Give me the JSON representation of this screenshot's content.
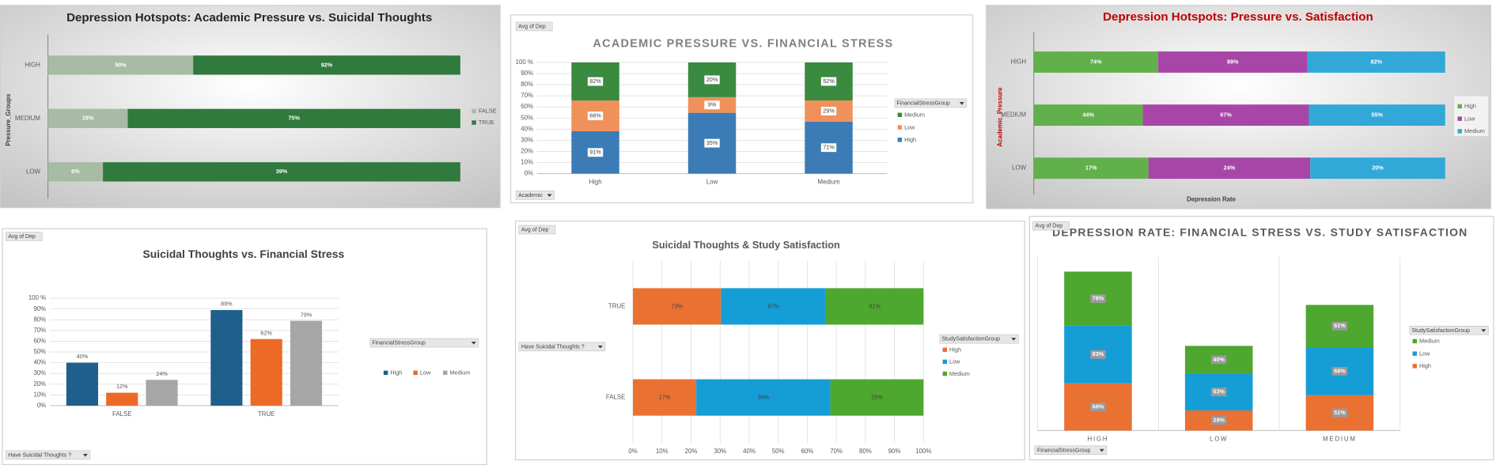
{
  "chart_data": [
    {
      "type": "bar",
      "title": "Depression Hotspots: Academic Pressure vs. Suicidal Thoughts",
      "horizontal": true,
      "stacking": "percent",
      "y_label": "Pressure_Groups",
      "categories": [
        "HIGH",
        "MEDIUM",
        "LOW"
      ],
      "xlim": [
        0,
        100
      ],
      "legend": "right",
      "series": [
        {
          "name": "FALSE",
          "color": "#a7bba5",
          "values": [
            50,
            18,
            6
          ],
          "value_labels": [
            "50%",
            "18%",
            "6%"
          ]
        },
        {
          "name": "TRUE",
          "color": "#2f7a3c",
          "values": [
            92,
            75,
            39
          ],
          "value_labels": [
            "92%",
            "75%",
            "39%"
          ]
        }
      ]
    },
    {
      "type": "bar",
      "title": "ACADEMIC PRESSURE VS. FINANCIAL STRESS",
      "stacking": "percent",
      "field_buttons": [
        "Avg of Dep",
        "Academic"
      ],
      "legend_title": "FinancialStressGroup",
      "legend": "right",
      "grid": true,
      "categories": [
        "High",
        "Low",
        "Medium"
      ],
      "ylim": [
        0,
        100
      ],
      "yticks": [
        {
          "value": 0,
          "label": "0%"
        },
        {
          "value": 10,
          "label": "10%"
        },
        {
          "value": 20,
          "label": "20%"
        },
        {
          "value": 30,
          "label": "30%"
        },
        {
          "value": 40,
          "label": "40%"
        },
        {
          "value": 50,
          "label": "50%"
        },
        {
          "value": 60,
          "label": "60%"
        },
        {
          "value": 70,
          "label": "70%"
        },
        {
          "value": 80,
          "label": "80%"
        },
        {
          "value": 90,
          "label": "90%"
        },
        {
          "value": 100,
          "label": "100 %"
        }
      ],
      "series": [
        {
          "name": "High",
          "color": "#3b7cb6",
          "values": [
            91,
            35,
            71
          ],
          "value_labels": [
            "91%",
            "35%",
            "71%"
          ]
        },
        {
          "name": "Low",
          "color": "#f0905a",
          "values": [
            66,
            9,
            29
          ],
          "value_labels": [
            "66%",
            "9%",
            "29%"
          ]
        },
        {
          "name": "Medium",
          "color": "#3a8a40",
          "values": [
            82,
            20,
            52
          ],
          "value_labels": [
            "82%",
            "20%",
            "52%"
          ]
        }
      ]
    },
    {
      "type": "bar",
      "title": "Depression Hotspots: Pressure vs. Satisfaction",
      "horizontal": true,
      "stacking": "percent",
      "y_label": "Academic_Pressure",
      "x_label": "Depression Rate",
      "categories": [
        "HIGH",
        "MEDIUM",
        "LOW"
      ],
      "xlim": [
        0,
        100
      ],
      "legend": "right",
      "series": [
        {
          "name": "High",
          "color": "#62b04b",
          "values": [
            74,
            44,
            17
          ],
          "value_labels": [
            "74%",
            "44%",
            "17%"
          ]
        },
        {
          "name": "Low",
          "color": "#a846a8",
          "values": [
            89,
            67,
            24
          ],
          "value_labels": [
            "89%",
            "67%",
            "24%"
          ]
        },
        {
          "name": "Medium",
          "color": "#31a8d8",
          "values": [
            82,
            55,
            20
          ],
          "value_labels": [
            "82%",
            "55%",
            "20%"
          ]
        }
      ]
    },
    {
      "type": "bar",
      "title": "Suicidal Thoughts vs. Financial Stress",
      "field_buttons": [
        "Avg of Dep",
        "Have Suicidal Thoughts ?"
      ],
      "legend_title": "FinancialStressGroup",
      "legend": "right",
      "grid": true,
      "categories": [
        "FALSE",
        "TRUE"
      ],
      "ylim": [
        0,
        100
      ],
      "yticks": [
        {
          "value": 0,
          "label": "0%"
        },
        {
          "value": 10,
          "label": "10%"
        },
        {
          "value": 20,
          "label": "20%"
        },
        {
          "value": 30,
          "label": "30%"
        },
        {
          "value": 40,
          "label": "40%"
        },
        {
          "value": 50,
          "label": "50%"
        },
        {
          "value": 60,
          "label": "60%"
        },
        {
          "value": 70,
          "label": "70%"
        },
        {
          "value": 80,
          "label": "80%"
        },
        {
          "value": 90,
          "label": "90%"
        },
        {
          "value": 100,
          "label": "100 %"
        }
      ],
      "series": [
        {
          "name": "High",
          "color": "#1f5f8b",
          "values": [
            40,
            89
          ],
          "value_labels": [
            "40%",
            "89%"
          ]
        },
        {
          "name": "Low",
          "color": "#ec6a25",
          "values": [
            12,
            62
          ],
          "value_labels": [
            "12%",
            "62%"
          ]
        },
        {
          "name": "Medium",
          "color": "#a6a6a6",
          "values": [
            24,
            79
          ],
          "value_labels": [
            "24%",
            "79%"
          ]
        }
      ]
    },
    {
      "type": "bar",
      "title": "Suicidal Thoughts & Study Satisfaction",
      "horizontal": true,
      "stacking": "percent",
      "field_buttons": [
        "Avg of Dep",
        "Have Suicidal Thoughts ?"
      ],
      "legend_title": "StudySatisfactionGroup",
      "legend": "right",
      "grid": true,
      "categories": [
        "TRUE",
        "FALSE"
      ],
      "xlim": [
        0,
        100
      ],
      "xticks": [
        {
          "value": 0,
          "label": "0%"
        },
        {
          "value": 10,
          "label": "10%"
        },
        {
          "value": 20,
          "label": "20%"
        },
        {
          "value": 30,
          "label": "30%"
        },
        {
          "value": 40,
          "label": "40%"
        },
        {
          "value": 50,
          "label": "50%"
        },
        {
          "value": 60,
          "label": "60%"
        },
        {
          "value": 70,
          "label": "70%"
        },
        {
          "value": 80,
          "label": "80%"
        },
        {
          "value": 90,
          "label": "90%"
        },
        {
          "value": 100,
          "label": "100%"
        }
      ],
      "series": [
        {
          "name": "High",
          "color": "#e97132",
          "values": [
            73,
            17
          ],
          "value_labels": [
            "73%",
            "17%"
          ]
        },
        {
          "name": "Low",
          "color": "#159dd6",
          "values": [
            87,
            36
          ],
          "value_labels": [
            "87%",
            "36%"
          ]
        },
        {
          "name": "Medium",
          "color": "#4ea72e",
          "values": [
            81,
            25
          ],
          "value_labels": [
            "81%",
            "25%"
          ]
        }
      ]
    },
    {
      "type": "bar",
      "title": "DEPRESSION RATE: FINANCIAL STRESS VS. STUDY SATISFACTION",
      "stacking": "normal",
      "field_buttons": [
        "Avg of Dep",
        "FinancialStressGroup"
      ],
      "legend_title": "StudySatisfactionGroup",
      "legend": "right",
      "categories": [
        "HIGH",
        "LOW",
        "MEDIUM"
      ],
      "ylim": [
        0,
        250
      ],
      "series": [
        {
          "name": "High",
          "color": "#e97132",
          "values": [
            68,
            29,
            51
          ],
          "value_labels": [
            "68%",
            "29%",
            "51%"
          ]
        },
        {
          "name": "Low",
          "color": "#159dd6",
          "values": [
            83,
            53,
            69
          ],
          "value_labels": [
            "83%",
            "53%",
            "69%"
          ]
        },
        {
          "name": "Medium",
          "color": "#4ea72e",
          "values": [
            78,
            40,
            61
          ],
          "value_labels": [
            "78%",
            "40%",
            "61%"
          ]
        }
      ]
    }
  ]
}
